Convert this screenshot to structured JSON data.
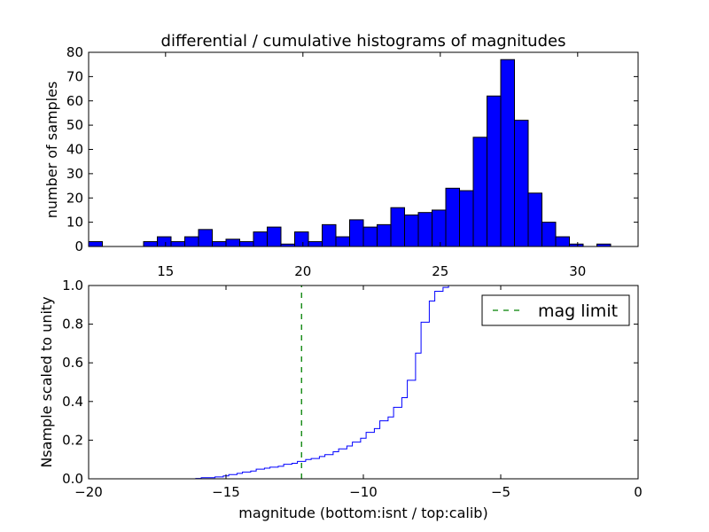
{
  "chart_data": [
    {
      "type": "bar",
      "title": "differential / cumulative histograms of magnitudes",
      "xlabel": "",
      "ylabel": "number of samples",
      "xlim": [
        12.2,
        32.2
      ],
      "ylim": [
        0,
        80
      ],
      "x_ticks": [
        15,
        20,
        25,
        30
      ],
      "y_ticks": [
        0,
        10,
        20,
        30,
        40,
        50,
        60,
        70,
        80
      ],
      "x_tick_position": "top",
      "bar_color": "#0000ff",
      "bin_width": 0.5,
      "bin_starts": [
        12.2,
        12.7,
        13.2,
        13.7,
        14.2,
        14.7,
        15.2,
        15.7,
        16.2,
        16.7,
        17.2,
        17.7,
        18.2,
        18.7,
        19.2,
        19.7,
        20.2,
        20.7,
        21.2,
        21.7,
        22.2,
        22.7,
        23.2,
        23.7,
        24.2,
        24.7,
        25.2,
        25.7,
        26.2,
        26.7,
        27.2,
        27.7,
        28.2,
        28.7,
        29.2,
        29.7,
        30.2,
        30.7,
        31.2,
        31.7
      ],
      "values": [
        2,
        0,
        0,
        0,
        2,
        4,
        2,
        4,
        7,
        2,
        3,
        2,
        6,
        8,
        1,
        6,
        2,
        9,
        4,
        11,
        8,
        9,
        16,
        13,
        14,
        15,
        24,
        23,
        45,
        62,
        77,
        52,
        22,
        10,
        4,
        1,
        0,
        1,
        0,
        0
      ]
    },
    {
      "type": "line",
      "xlabel": "magnitude (bottom:isnt / top:calib)",
      "ylabel": "Nsample scaled to unity",
      "xlim": [
        -20,
        0
      ],
      "ylim": [
        0,
        1.0
      ],
      "x_ticks": [
        -20,
        -15,
        -10,
        -5,
        0
      ],
      "x_tick_labels": [
        "−20",
        "−15",
        "−10",
        "−5",
        "0"
      ],
      "y_ticks": [
        0.0,
        0.2,
        0.4,
        0.6,
        0.8,
        1.0
      ],
      "y_tick_labels": [
        "0.0",
        "0.2",
        "0.4",
        "0.6",
        "0.8",
        "1.0"
      ],
      "series": [
        {
          "name": "",
          "color": "#0000ff",
          "style": "step",
          "x": [
            -20,
            -16.1,
            -15.9,
            -15.4,
            -15.1,
            -14.9,
            -14.6,
            -14.4,
            -14.1,
            -13.9,
            -13.6,
            -13.4,
            -13.1,
            -12.9,
            -12.6,
            -12.4,
            -12.1,
            -11.9,
            -11.6,
            -11.4,
            -11.1,
            -10.9,
            -10.6,
            -10.4,
            -10.1,
            -9.9,
            -9.6,
            -9.4,
            -9.1,
            -8.9,
            -8.6,
            -8.4,
            -8.1,
            -7.9,
            -7.6,
            -7.4,
            -7.1,
            -6.9
          ],
          "y": [
            0.0,
            0.002,
            0.006,
            0.01,
            0.015,
            0.022,
            0.028,
            0.035,
            0.04,
            0.05,
            0.055,
            0.06,
            0.065,
            0.075,
            0.08,
            0.09,
            0.1,
            0.105,
            0.115,
            0.125,
            0.14,
            0.155,
            0.17,
            0.19,
            0.21,
            0.24,
            0.26,
            0.3,
            0.32,
            0.37,
            0.42,
            0.51,
            0.65,
            0.81,
            0.92,
            0.97,
            0.99,
            1.0
          ]
        },
        {
          "name": "mag limit",
          "color": "#008000",
          "style": "dashed-vertical",
          "x": [
            -12.25,
            -12.25
          ],
          "y": [
            0.0,
            1.0
          ]
        }
      ],
      "legend": {
        "entries": [
          "mag limit"
        ],
        "position": "top-right"
      }
    }
  ]
}
